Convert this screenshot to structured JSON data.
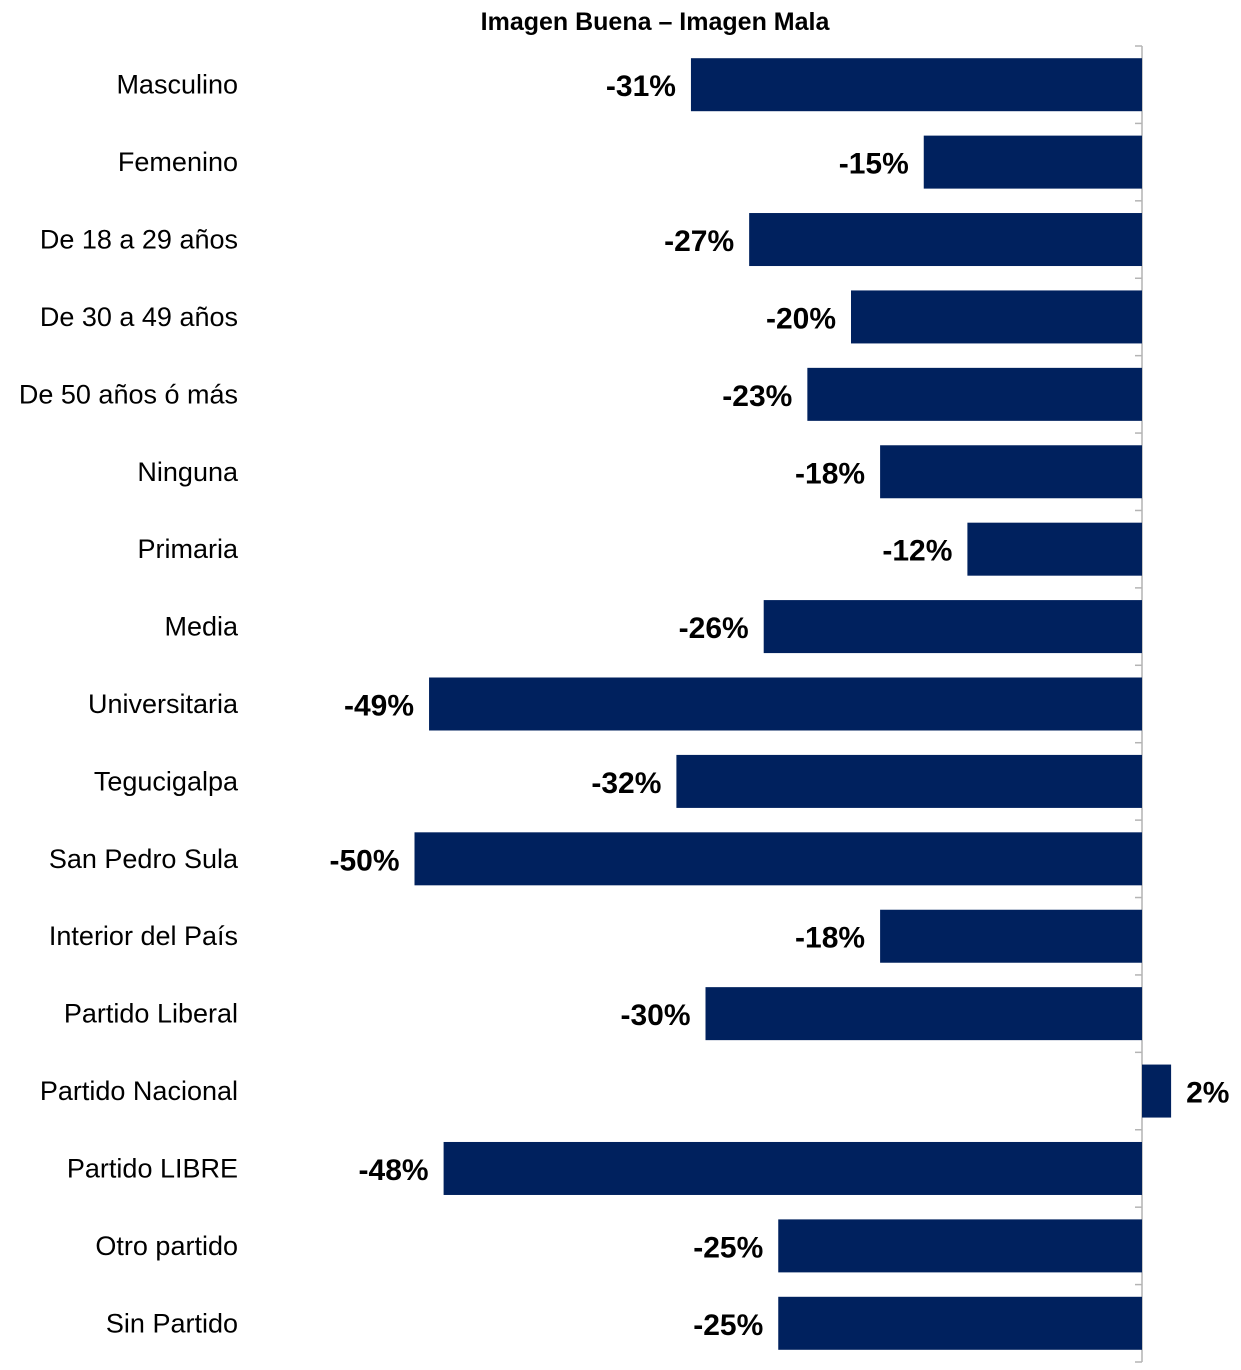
{
  "chart_data": {
    "type": "bar",
    "orientation": "horizontal",
    "title": "Imagen Buena – Imagen Mala",
    "categories": [
      "Masculino",
      "Femenino",
      "De 18 a 29 años",
      "De 30 a 49 años",
      "De 50 años ó más",
      "Ninguna",
      "Primaria",
      "Media",
      "Universitaria",
      "Tegucigalpa",
      "San Pedro Sula",
      "Interior del País",
      "Partido Liberal",
      "Partido Nacional",
      "Partido LIBRE",
      "Otro partido",
      "Sin Partido"
    ],
    "values": [
      -31,
      -15,
      -27,
      -20,
      -23,
      -18,
      -12,
      -26,
      -49,
      -32,
      -50,
      -18,
      -30,
      2,
      -48,
      -25,
      -25
    ],
    "value_labels": [
      "-31%",
      "-15%",
      "-27%",
      "-20%",
      "-23%",
      "-18%",
      "-12%",
      "-26%",
      "-49%",
      "-32%",
      "-50%",
      "-18%",
      "-30%",
      "2%",
      "-48%",
      "-25%",
      "-25%"
    ],
    "xlim": [
      -50,
      2
    ],
    "grid": false,
    "legend": "none",
    "bar_color": "#00215E"
  }
}
